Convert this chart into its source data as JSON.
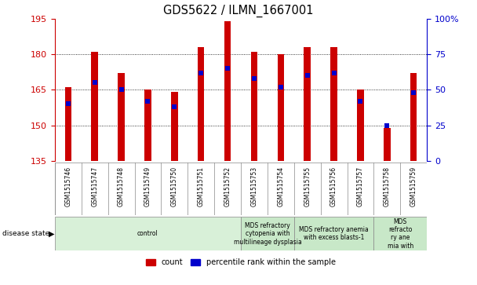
{
  "title": "GDS5622 / ILMN_1667001",
  "samples": [
    "GSM1515746",
    "GSM1515747",
    "GSM1515748",
    "GSM1515749",
    "GSM1515750",
    "GSM1515751",
    "GSM1515752",
    "GSM1515753",
    "GSM1515754",
    "GSM1515755",
    "GSM1515756",
    "GSM1515757",
    "GSM1515758",
    "GSM1515759"
  ],
  "counts": [
    166,
    181,
    172,
    165,
    164,
    183,
    194,
    181,
    180,
    183,
    183,
    165,
    149,
    172
  ],
  "percentile_ranks": [
    40,
    55,
    50,
    42,
    38,
    62,
    65,
    58,
    52,
    60,
    62,
    42,
    25,
    48
  ],
  "ylim_left": [
    135,
    195
  ],
  "ylim_right": [
    0,
    100
  ],
  "yticks_left": [
    135,
    150,
    165,
    180,
    195
  ],
  "yticks_right": [
    0,
    25,
    50,
    75,
    100
  ],
  "bar_color": "#cc0000",
  "dot_color": "#0000cc",
  "background_color": "#ffffff",
  "disease_groups": [
    {
      "label": "control",
      "start": 0,
      "end": 7,
      "color": "#d8f0d8"
    },
    {
      "label": "MDS refractory\ncytopenia with\nmultilineage dysplasia",
      "start": 7,
      "end": 9,
      "color": "#c8e8c8"
    },
    {
      "label": "MDS refractory anemia\nwith excess blasts-1",
      "start": 9,
      "end": 12,
      "color": "#c8e8c8"
    },
    {
      "label": "MDS\nrefracto\nry ane\nmia with",
      "start": 12,
      "end": 14,
      "color": "#c8e8c8"
    }
  ],
  "label_bg_color": "#d8d8d8",
  "label_border_color": "#888888",
  "bar_width": 0.25
}
